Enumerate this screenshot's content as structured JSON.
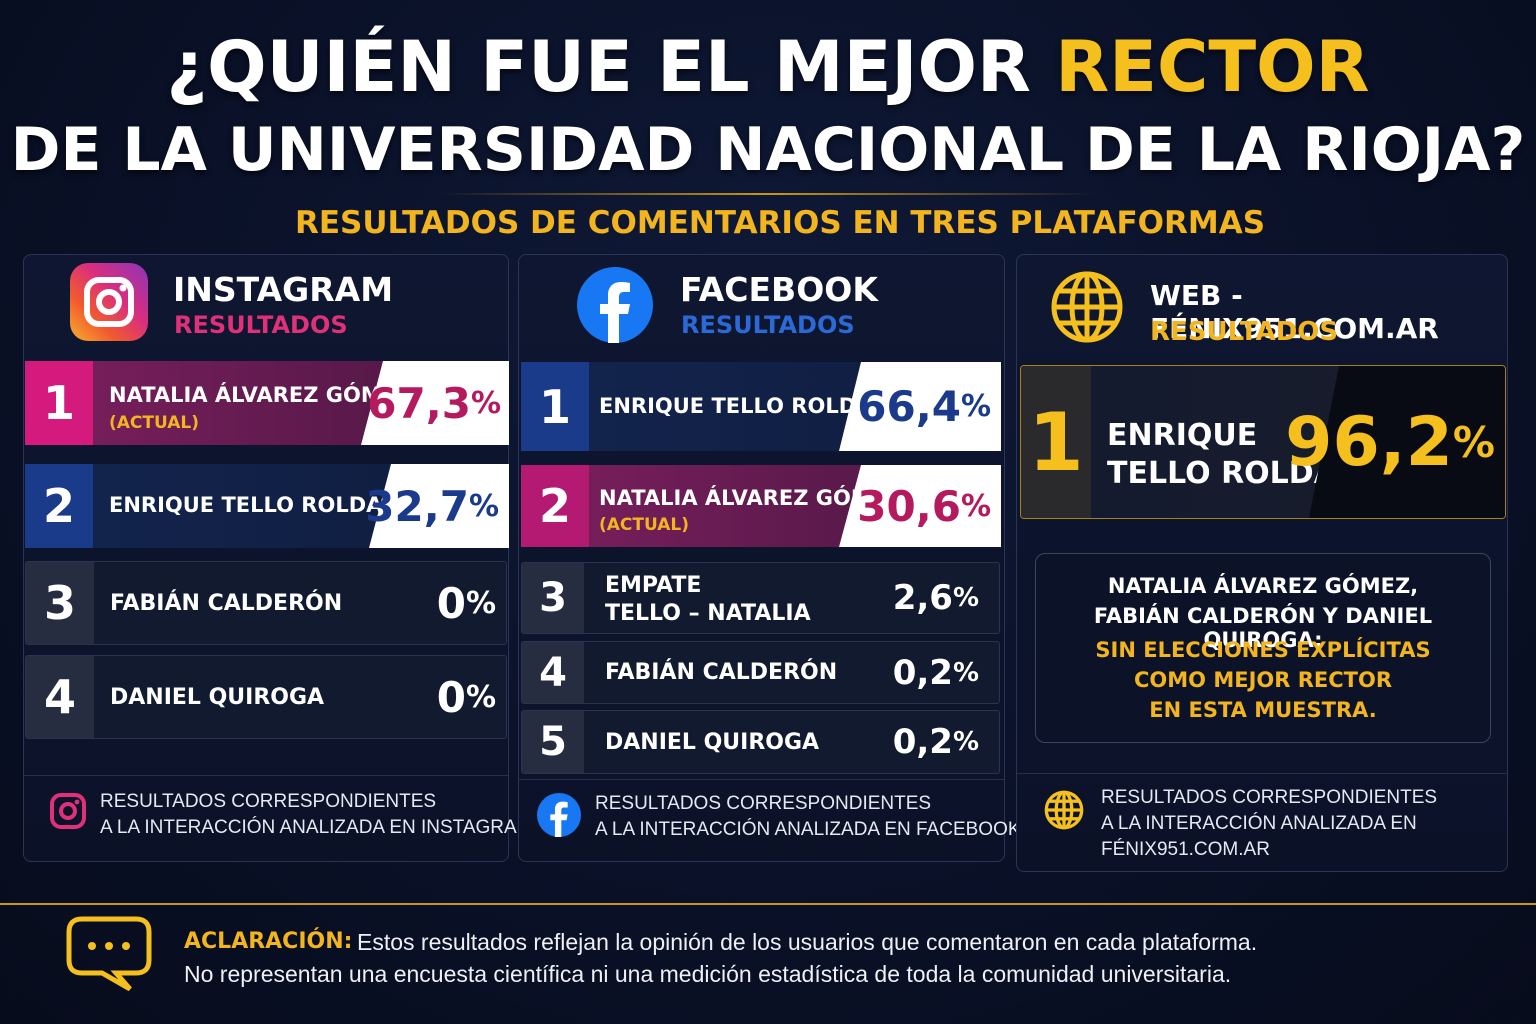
{
  "title": {
    "line1_pre": "¿QUIÉN FUE EL MEJOR ",
    "line1_highlight": "RECTOR",
    "line2": "DE LA UNIVERSIDAD NACIONAL DE LA RIOJA?"
  },
  "subtitle": "RESULTADOS DE COMENTARIOS EN TRES PLATAFORMAS",
  "colors": {
    "gold": "#f5c01e",
    "instagram": "#e0307a",
    "facebook": "#1877f2",
    "dark_navy": "#0a1128"
  },
  "instagram": {
    "icon": "instagram-icon",
    "name": "INSTAGRAM",
    "label": "RESULTADOS",
    "rows": [
      {
        "rank": "1",
        "name": "NATALIA ÁLVAREZ GÓMEZ",
        "note": "(ACTUAL)",
        "pct_num": "67,3",
        "pct_sym": "%"
      },
      {
        "rank": "2",
        "name": "ENRIQUE TELLO ROLDÁN",
        "pct_num": "32,7",
        "pct_sym": "%"
      },
      {
        "rank": "3",
        "name": "FABIÁN CALDERÓN",
        "pct_num": "0",
        "pct_sym": "%"
      },
      {
        "rank": "4",
        "name": "DANIEL QUIROGA",
        "pct_num": "0",
        "pct_sym": "%"
      }
    ],
    "footer_line1": "RESULTADOS CORRESPONDIENTES",
    "footer_line2": "A LA INTERACCIÓN ANALIZADA EN INSTAGRAM"
  },
  "facebook": {
    "icon": "facebook-icon",
    "name": "FACEBOOK",
    "label": "RESULTADOS",
    "rows": [
      {
        "rank": "1",
        "name": "ENRIQUE TELLO ROLDÁN",
        "pct_num": "66,4",
        "pct_sym": "%"
      },
      {
        "rank": "2",
        "name": "NATALIA ÁLVAREZ GÓMEZ",
        "note": "(ACTUAL)",
        "pct_num": "30,6",
        "pct_sym": "%"
      },
      {
        "rank": "3",
        "name": "EMPATE",
        "name2": "TELLO – NATALIA",
        "pct_num": "2,6",
        "pct_sym": "%"
      },
      {
        "rank": "4",
        "name": "FABIÁN CALDERÓN",
        "pct_num": "0,2",
        "pct_sym": "%"
      },
      {
        "rank": "5",
        "name": "DANIEL QUIROGA",
        "pct_num": "0,2",
        "pct_sym": "%"
      }
    ],
    "footer_line1": "RESULTADOS CORRESPONDIENTES",
    "footer_line2": "A LA INTERACCIÓN ANALIZADA EN FACEBOOK"
  },
  "web": {
    "icon": "globe-icon",
    "name": "WEB - FÉNIX951.COM.AR",
    "label": "RESULTADOS",
    "top": {
      "rank": "1",
      "name1": "ENRIQUE",
      "name2": "TELLO ROLDÁN",
      "pct_num": "96,2",
      "pct_sym": "%"
    },
    "note": {
      "line1": "NATALIA ÁLVAREZ GÓMEZ,",
      "line2": "FABIÁN CALDERÓN Y DANIEL QUIROGA:",
      "line3": "SIN ELECCIONES EXPLÍCITAS",
      "line4": "COMO MEJOR RECTOR",
      "line5": "EN ESTA MUESTRA."
    },
    "footer_line1": "RESULTADOS CORRESPONDIENTES",
    "footer_line2": "A LA INTERACCIÓN ANALIZADA EN",
    "footer_line3": "FÉNIX951.COM.AR"
  },
  "disclaimer": {
    "icon": "chat-bubble-icon",
    "label": "ACLARACIÓN:",
    "text1": "Estos resultados reflejan la opinión de los usuarios que comentaron en cada plataforma.",
    "text2": "No representan una encuesta científica ni una medición estadística de toda la comunidad universitaria."
  }
}
